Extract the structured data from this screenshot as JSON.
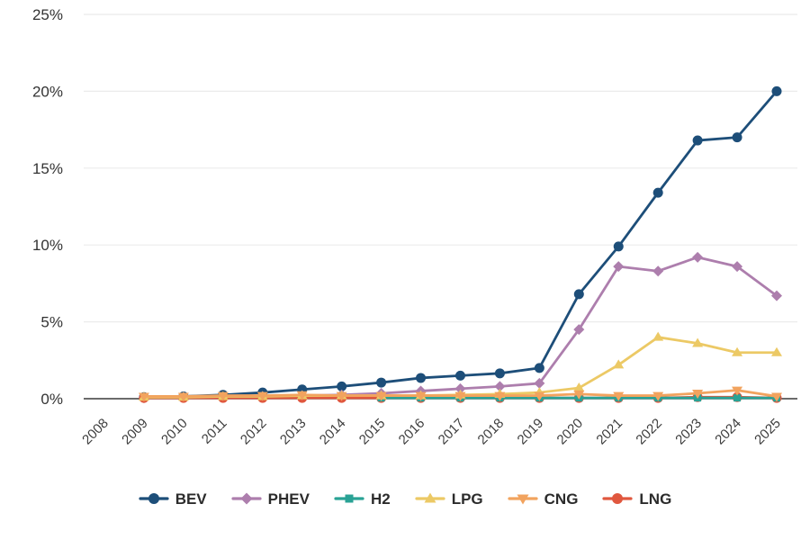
{
  "chart_data": {
    "type": "line",
    "title": "",
    "xlabel": "",
    "ylabel": "",
    "ylim": [
      0,
      25
    ],
    "grid": true,
    "legend_position": "bottom",
    "x": [
      "2008",
      "2009",
      "2010",
      "2011",
      "2012",
      "2013",
      "2014",
      "2015",
      "2016",
      "2017",
      "2018",
      "2019",
      "2020",
      "2021",
      "2022",
      "2023",
      "2024",
      "2025"
    ],
    "y_tick_values": [
      0,
      5,
      10,
      15,
      20,
      25
    ],
    "y_tick_labels": [
      "0%",
      "5%",
      "10%",
      "15%",
      "20%",
      "25%"
    ],
    "series": [
      {
        "name": "BEV",
        "color": "#1d4e79",
        "marker": "circle",
        "values": [
          null,
          0.1,
          0.15,
          0.25,
          0.4,
          0.6,
          0.8,
          1.05,
          1.35,
          1.5,
          1.65,
          2.0,
          6.8,
          9.9,
          13.4,
          16.8,
          17.0,
          20.0
        ]
      },
      {
        "name": "PHEV",
        "color": "#ad7ead",
        "marker": "diamond",
        "values": [
          null,
          0.05,
          0.1,
          0.1,
          0.15,
          0.2,
          0.25,
          0.35,
          0.5,
          0.65,
          0.8,
          1.0,
          4.5,
          8.6,
          8.3,
          9.2,
          8.6,
          6.7
        ]
      },
      {
        "name": "H2",
        "color": "#29a295",
        "marker": "square",
        "values": [
          null,
          null,
          null,
          null,
          null,
          null,
          null,
          0.05,
          0.05,
          0.05,
          0.05,
          0.05,
          0.05,
          0.05,
          0.05,
          0.05,
          0.05,
          0.05
        ]
      },
      {
        "name": "LPG",
        "color": "#ecc965",
        "marker": "triangle-up",
        "values": [
          null,
          0.1,
          0.1,
          0.15,
          0.15,
          0.2,
          0.2,
          0.2,
          0.2,
          0.25,
          0.3,
          0.4,
          0.7,
          2.2,
          4.0,
          3.6,
          3.0,
          3.0
        ]
      },
      {
        "name": "CNG",
        "color": "#f2a35e",
        "marker": "triangle-down",
        "values": [
          null,
          0.15,
          0.15,
          0.2,
          0.2,
          0.25,
          0.2,
          0.2,
          0.2,
          0.2,
          0.2,
          0.2,
          0.3,
          0.2,
          0.2,
          0.35,
          0.55,
          0.15
        ]
      },
      {
        "name": "LNG",
        "color": "#e0573e",
        "marker": "circle",
        "values": [
          null,
          0.05,
          0.05,
          0.05,
          0.05,
          0.05,
          0.05,
          0.05,
          0.05,
          0.05,
          0.05,
          0.05,
          0.05,
          0.05,
          0.05,
          0.1,
          0.1,
          0.05
        ]
      }
    ],
    "draw_order": [
      "BEV",
      "PHEV",
      "LNG",
      "H2",
      "LPG",
      "CNG"
    ],
    "axis_color": "#3a3a3a",
    "gridline_color": "#ebebeb"
  }
}
